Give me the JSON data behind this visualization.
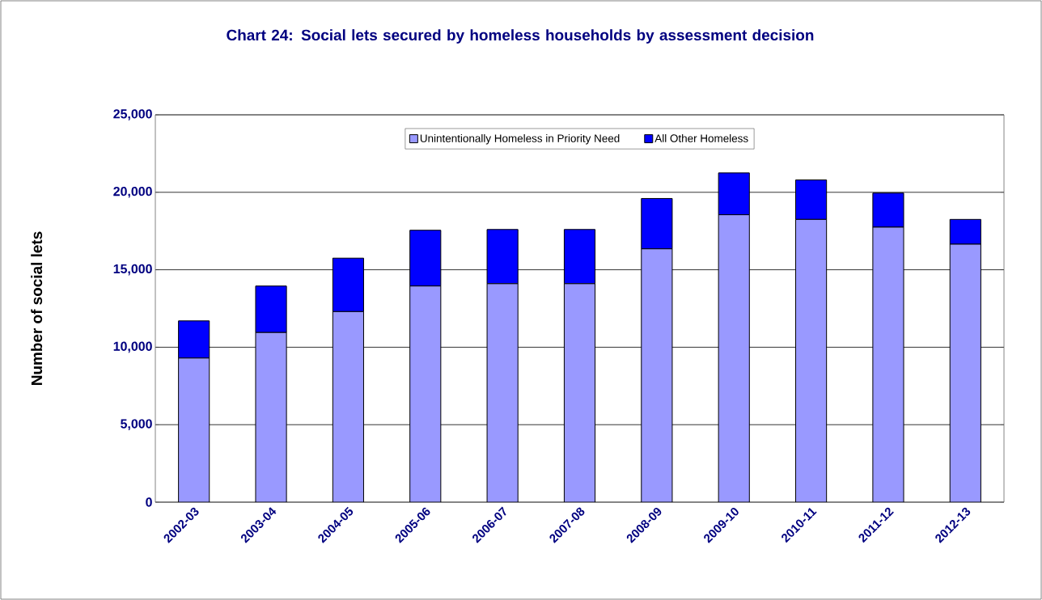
{
  "chart_data": {
    "type": "bar",
    "title": "Chart 24:  Social lets secured by homeless households by assessment decision",
    "ylabel": "Number of social lets",
    "categories": [
      "2002-03",
      "2003-04",
      "2004-05",
      "2005-06",
      "2006-07",
      "2007-08",
      "2008-09",
      "2009-10",
      "2010-11",
      "2011-12",
      "2012-13"
    ],
    "stacked": true,
    "series": [
      {
        "name": "Unintentionally Homeless in Priority Need",
        "color": "#9999ff",
        "values": [
          9300,
          10950,
          12300,
          13950,
          14100,
          14100,
          16350,
          18550,
          18250,
          17750,
          16650
        ]
      },
      {
        "name": "All Other Homeless",
        "color": "#0000ff",
        "values": [
          2400,
          3000,
          3450,
          3600,
          3500,
          3500,
          3250,
          2700,
          2550,
          2200,
          1600
        ]
      }
    ],
    "ylim": [
      0,
      25000
    ],
    "yticks": [
      {
        "value": 0,
        "label": "0"
      },
      {
        "value": 5000,
        "label": "5,000"
      },
      {
        "value": 10000,
        "label": "10,000"
      },
      {
        "value": 15000,
        "label": "15,000"
      },
      {
        "value": 20000,
        "label": "20,000"
      },
      {
        "value": 25000,
        "label": "25,000"
      }
    ],
    "grid": "y",
    "legend": "top"
  }
}
